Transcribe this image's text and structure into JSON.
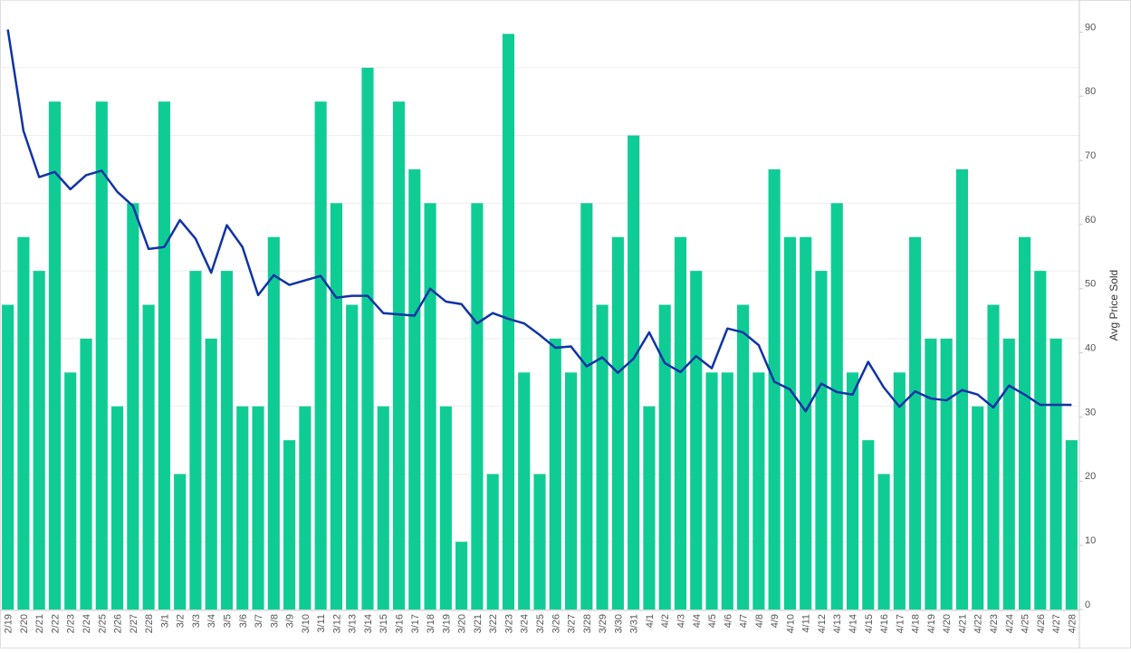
{
  "chart_data": {
    "type": "bar_line",
    "categories": [
      "2/19",
      "2/20",
      "2/21",
      "2/22",
      "2/23",
      "2/24",
      "2/25",
      "2/26",
      "2/27",
      "2/28",
      "3/1",
      "3/2",
      "3/3",
      "3/4",
      "3/5",
      "3/6",
      "3/7",
      "3/8",
      "3/9",
      "3/10",
      "3/11",
      "3/12",
      "3/13",
      "3/14",
      "3/15",
      "3/16",
      "3/17",
      "3/18",
      "3/19",
      "3/20",
      "3/21",
      "3/22",
      "3/23",
      "3/24",
      "3/25",
      "3/26",
      "3/27",
      "3/28",
      "3/29",
      "3/30",
      "3/31",
      "4/1",
      "4/2",
      "4/3",
      "4/4",
      "4/5",
      "4/6",
      "4/7",
      "4/8",
      "4/9",
      "4/10",
      "4/11",
      "4/12",
      "4/13",
      "4/14",
      "4/15",
      "4/16",
      "4/17",
      "4/18",
      "4/19",
      "4/20",
      "4/21",
      "4/22",
      "4/23",
      "4/24",
      "4/25",
      "4/26",
      "4/27",
      "4/28"
    ],
    "series": [
      {
        "type": "bar",
        "color": "#0fcc95",
        "values": [
          9,
          11,
          10,
          15,
          7,
          8,
          15,
          6,
          12,
          9,
          15,
          4,
          10,
          8,
          10,
          6,
          6,
          11,
          5,
          6,
          15,
          12,
          9,
          16,
          6,
          15,
          13,
          12,
          6,
          2,
          12,
          4,
          17,
          7,
          4,
          8,
          7,
          12,
          9,
          11,
          14,
          6,
          9,
          11,
          10,
          7,
          7,
          9,
          7,
          13,
          11,
          11,
          10,
          12,
          7,
          5,
          4,
          7,
          11,
          8,
          8,
          13,
          6,
          9,
          8,
          11,
          10,
          8,
          5
        ]
      },
      {
        "type": "line",
        "name": "Avg Price Sold",
        "axis": "y2",
        "color": "#1133a6",
        "values": [
          90.4,
          74.6,
          67.4,
          68.2,
          65.5,
          67.7,
          68.4,
          65.1,
          62.9,
          56.2,
          56.5,
          60.7,
          57.8,
          52.5,
          59.9,
          56.5,
          49.0,
          52.1,
          50.6,
          51.3,
          52.0,
          48.6,
          48.9,
          48.9,
          46.2,
          46.0,
          45.8,
          50.0,
          48.0,
          47.6,
          44.6,
          46.2,
          45.3,
          44.6,
          42.8,
          40.8,
          41.0,
          37.9,
          39.3,
          36.9,
          39.1,
          43.2,
          38.4,
          37.0,
          39.5,
          37.6,
          43.8,
          43.2,
          41.2,
          35.5,
          34.3,
          30.9,
          35.2,
          33.9,
          33.5,
          38.6,
          34.6,
          31.6,
          34.0,
          32.9,
          32.6,
          34.2,
          33.5,
          31.5,
          34.9,
          33.5,
          31.9,
          31.9,
          31.9
        ]
      }
    ],
    "ylim": [
      0,
      18
    ],
    "yticks": [
      0,
      2,
      4,
      6,
      8,
      10,
      12,
      14,
      16,
      18
    ],
    "y_tick_labels": false,
    "grid": true,
    "y2lim": [
      0,
      95
    ],
    "y2ticks": [
      0,
      10,
      20,
      30,
      40,
      50,
      60,
      70,
      80,
      90
    ],
    "y2label": "Avg Price Sold"
  }
}
